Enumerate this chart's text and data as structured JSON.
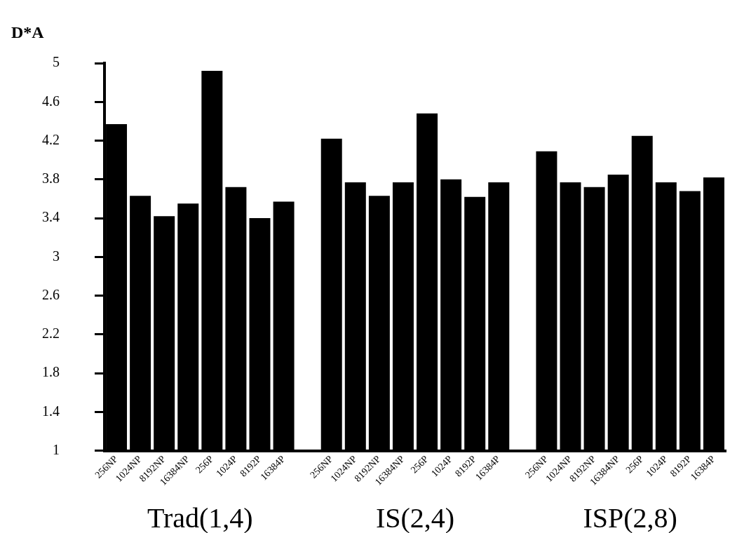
{
  "chart_data": {
    "type": "bar",
    "ylabel": "D*A",
    "categories": [
      "256NP",
      "1024NP",
      "8192NP",
      "16384NP",
      "256P",
      "1024P",
      "8192P",
      "16384P",
      null,
      "256NP",
      "1024NP",
      "8192NP",
      "16384NP",
      "256P",
      "1024P",
      "8192P",
      "16384P",
      null,
      "256NP",
      "1024NP",
      "8192NP",
      "16384NP",
      "256P",
      "1024P",
      "8192P",
      "16384P"
    ],
    "values": [
      4.37,
      3.63,
      3.42,
      3.55,
      4.92,
      3.72,
      3.4,
      3.57,
      null,
      4.22,
      3.77,
      3.63,
      3.77,
      4.48,
      3.8,
      3.62,
      3.77,
      null,
      4.09,
      3.77,
      3.72,
      3.85,
      4.25,
      3.77,
      3.68,
      3.82
    ],
    "color": "#000000",
    "ylim": [
      1,
      5
    ],
    "yticks": [
      1,
      1.4,
      1.8,
      2.2,
      2.6,
      3,
      3.4,
      3.8,
      4.2,
      4.6,
      5
    ],
    "grid": false,
    "annotations": [
      "Trad(1,4)",
      "IS(2,4)",
      "ISP(2,8)"
    ]
  }
}
